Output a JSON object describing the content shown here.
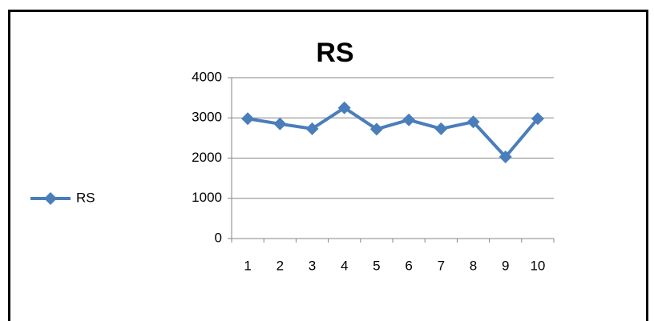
{
  "chart_data": {
    "type": "line",
    "title": "RS",
    "categories": [
      "1",
      "2",
      "3",
      "4",
      "5",
      "6",
      "7",
      "8",
      "9",
      "10"
    ],
    "series": [
      {
        "name": "RS",
        "color": "#4a7ebb",
        "values": [
          2980,
          2850,
          2730,
          3250,
          2720,
          2950,
          2730,
          2900,
          2030,
          2980
        ]
      }
    ],
    "ylim": [
      0,
      4000
    ],
    "yticks": [
      0,
      1000,
      2000,
      3000,
      4000
    ],
    "grid": true,
    "legend": "left"
  }
}
